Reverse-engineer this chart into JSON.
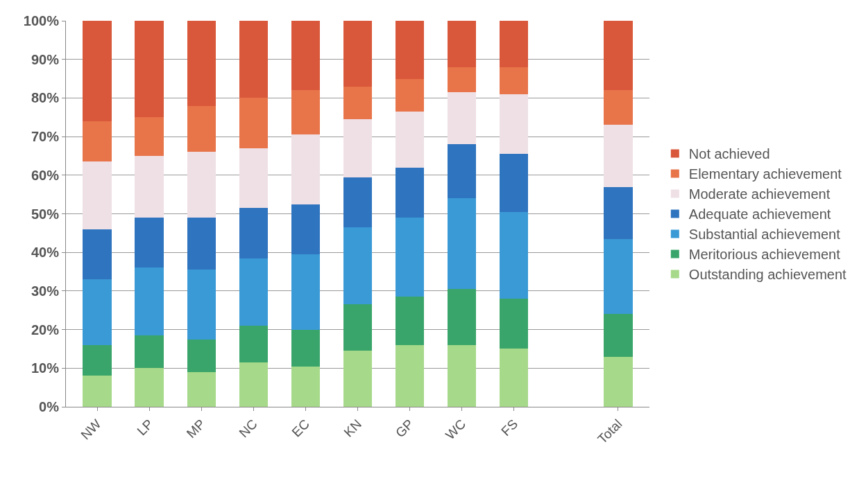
{
  "chart_data": {
    "type": "bar",
    "stacked": true,
    "categories": [
      "NW",
      "LP",
      "MP",
      "NC",
      "EC",
      "KN",
      "GP",
      "WC",
      "FS",
      null,
      "Total"
    ],
    "series": [
      {
        "name": "Outstanding achievement",
        "color": "#a6d98a",
        "values": [
          8,
          10,
          9,
          11.5,
          10.5,
          14.5,
          16,
          16,
          15,
          null,
          13
        ]
      },
      {
        "name": "Meritorious achievement",
        "color": "#3aa56a",
        "values": [
          8,
          8.5,
          8.5,
          9.5,
          9.5,
          12,
          12.5,
          14.5,
          13,
          null,
          11
        ]
      },
      {
        "name": "Substantial achievement",
        "color": "#3a9ad6",
        "values": [
          17,
          17.5,
          18,
          17.5,
          19.5,
          20,
          20.5,
          23.5,
          22.5,
          null,
          19.5
        ]
      },
      {
        "name": "Adequate achievement",
        "color": "#2f74bf",
        "values": [
          13,
          13,
          13.5,
          13,
          13,
          13,
          13,
          14,
          15,
          null,
          13.5
        ]
      },
      {
        "name": "Moderate achievement",
        "color": "#efe0e6",
        "values": [
          17.5,
          16,
          17,
          15.5,
          18,
          15,
          14.5,
          13.5,
          15.5,
          null,
          16
        ]
      },
      {
        "name": "Elementary achievement",
        "color": "#e8744a",
        "values": [
          10.5,
          10,
          12,
          13,
          11.5,
          8.5,
          8.5,
          6.5,
          7,
          null,
          9
        ]
      },
      {
        "name": "Not achieved",
        "color": "#d9573a",
        "values": [
          26,
          25,
          22,
          20,
          18,
          17,
          15,
          12,
          12,
          null,
          18
        ]
      }
    ],
    "ylim": [
      0,
      100
    ],
    "yticks": [
      {
        "value": 0,
        "label": "0%"
      },
      {
        "value": 10,
        "label": "10%"
      },
      {
        "value": 20,
        "label": "20%"
      },
      {
        "value": 30,
        "label": "30%"
      },
      {
        "value": 40,
        "label": "40%"
      },
      {
        "value": 50,
        "label": "50%"
      },
      {
        "value": 60,
        "label": "60%"
      },
      {
        "value": 70,
        "label": "70%"
      },
      {
        "value": 80,
        "label": "80%"
      },
      {
        "value": 90,
        "label": "90%"
      },
      {
        "value": 100,
        "label": "100%"
      }
    ],
    "grid": "y",
    "legend": "right"
  }
}
